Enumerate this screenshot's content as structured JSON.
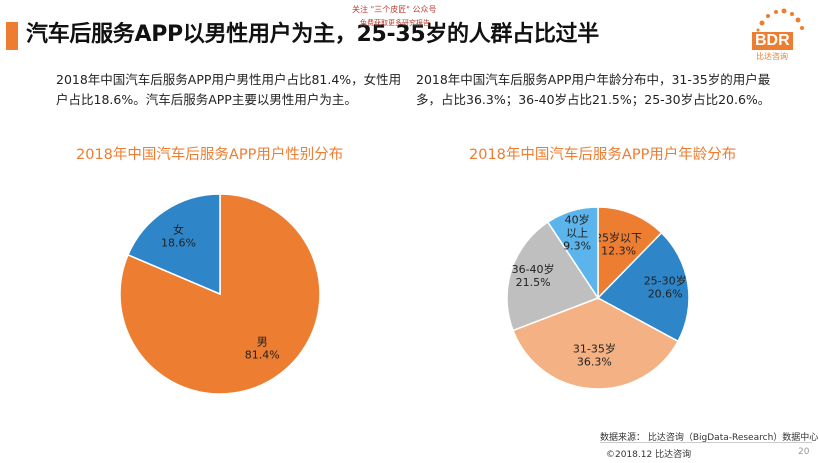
{
  "title": "汽车后服务APP以男性用户为主，25-35岁的人群占比过半",
  "watermark": {
    "line1": "关注 \"三个皮匠\" 公众号",
    "line2": "免费获取更多研究报告"
  },
  "logo": {
    "text": "BDR",
    "sub": "比达咨询"
  },
  "desc_left": "2018年中国汽车后服务APP用户男性用户占比81.4%，女性用户占比18.6%。汽车后服务APP主要以男性用户为主。",
  "desc_right": "2018年中国汽车后服务APP用户年龄分布中，31-35岁的用户最多，占比36.3%；36-40岁占比21.5%；25-30岁占比20.6%。",
  "footer": {
    "source": "数据来源：  比达咨询（BigData-Research）数据中心",
    "copyright": "©2018.12  比达咨询",
    "page": "20"
  },
  "chart_data": [
    {
      "type": "pie",
      "title": "2018年中国汽车后服务APP用户性别分布",
      "slices": [
        {
          "label": "男",
          "value": 81.4,
          "value_label": "81.4%",
          "color": "#ED7D31"
        },
        {
          "label": "女",
          "value": 18.6,
          "value_label": "18.6%",
          "color": "#2E86C9"
        }
      ]
    },
    {
      "type": "pie",
      "title": "2018年中国汽车后服务APP用户年龄分布",
      "slices": [
        {
          "label": "25岁以下",
          "value": 12.3,
          "value_label": "12.3%",
          "color": "#ED7D31"
        },
        {
          "label": "25-30岁",
          "value": 20.6,
          "value_label": "20.6%",
          "color": "#2E86C9"
        },
        {
          "label": "31-35岁",
          "value": 36.3,
          "value_label": "36.3%",
          "color": "#F4B183"
        },
        {
          "label": "36-40岁",
          "value": 21.5,
          "value_label": "21.5%",
          "color": "#BFBFBF"
        },
        {
          "label": "40岁以上",
          "value": 9.3,
          "value_label": "9.3%",
          "color": "#5BB5EC"
        }
      ]
    }
  ]
}
